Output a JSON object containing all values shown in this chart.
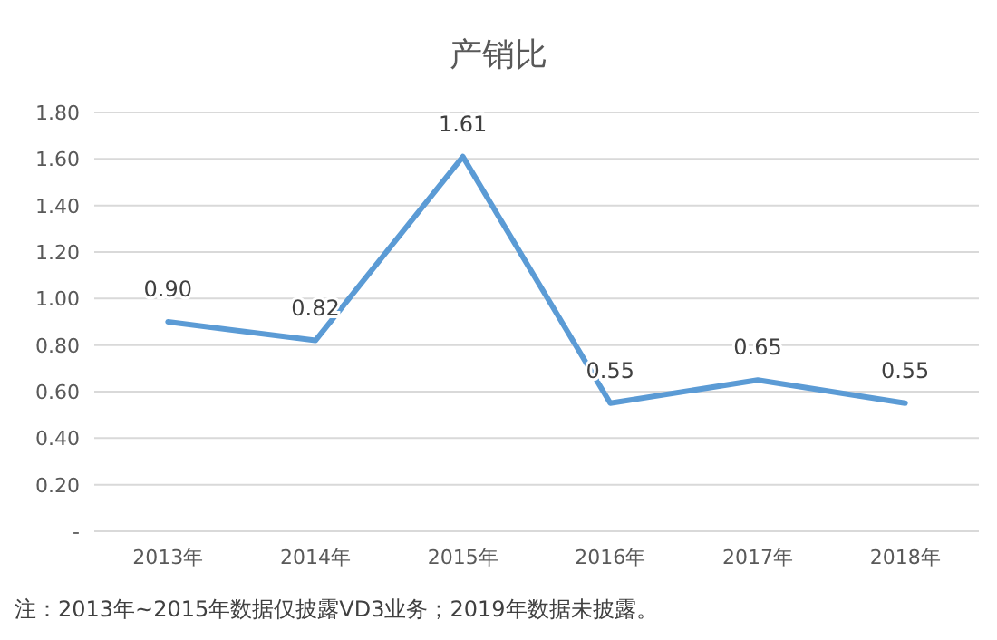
{
  "chart_data": {
    "type": "line",
    "title": "产销比",
    "categories": [
      "2013年",
      "2014年",
      "2015年",
      "2016年",
      "2017年",
      "2018年"
    ],
    "series": [
      {
        "color": "#5b9bd5",
        "values": [
          0.9,
          0.82,
          1.61,
          0.55,
          0.65,
          0.55
        ],
        "value_labels": [
          "0.90",
          "0.82",
          "1.61",
          "0.55",
          "0.65",
          "0.55"
        ]
      }
    ],
    "ylim": [
      0,
      1.8
    ],
    "yticks": [
      {
        "value": 0,
        "label": "-"
      },
      {
        "value": 0.2,
        "label": "0.20"
      },
      {
        "value": 0.4,
        "label": "0.40"
      },
      {
        "value": 0.6,
        "label": "0.60"
      },
      {
        "value": 0.8,
        "label": "0.80"
      },
      {
        "value": 1,
        "label": "1.00"
      },
      {
        "value": 1.2,
        "label": "1.20"
      },
      {
        "value": 1.4,
        "label": "1.40"
      },
      {
        "value": 1.6,
        "label": "1.60"
      },
      {
        "value": 1.8,
        "label": "1.80"
      }
    ],
    "grid": "y",
    "marker": "none",
    "line_style": "solid",
    "annotations": [
      "注：2013年~2015年数据仅披露VD3业务；2019年数据未披露。"
    ]
  }
}
